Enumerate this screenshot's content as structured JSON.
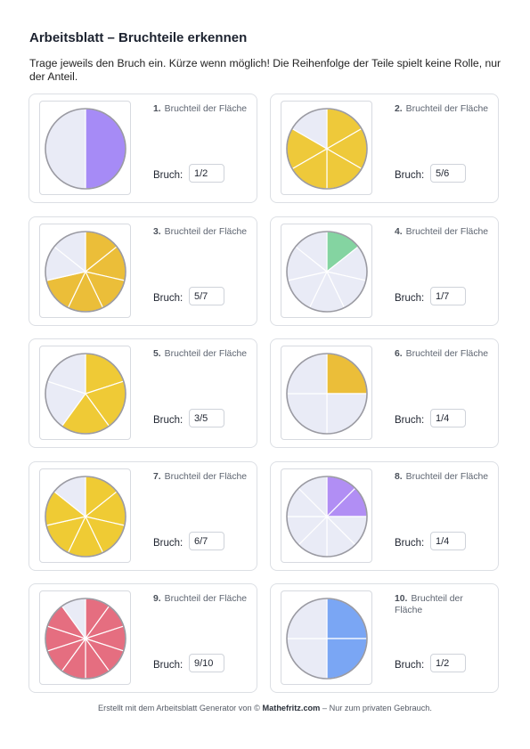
{
  "worksheet": {
    "title": "Arbeitsblatt – Bruchteile erkennen",
    "instructions": "Trage jeweils den Bruch ein. Kürze wenn möglich! Die Reihenfolge der Teile spielt keine Rolle, nur der Anteil.",
    "question_text": "Bruchteil der Fläche",
    "answer_label": "Bruch:",
    "footer_prefix": "Erstellt mit dem Arbeitsblatt Generator von ©",
    "footer_brand": "Mathefritz.com",
    "footer_suffix": "– Nur zum privaten Gebrauch."
  },
  "colors": {
    "empty_fill": "#e9ebf6",
    "outline": "#9a9aa2",
    "divider": "#ffffff"
  },
  "tasks": [
    {
      "number": "1.",
      "answer": "1/2",
      "slices": 2,
      "filled": 1,
      "filled_start": 0,
      "color": "#a68bf6"
    },
    {
      "number": "2.",
      "answer": "5/6",
      "slices": 6,
      "filled": 5,
      "filled_start": 0,
      "color": "#eec93a"
    },
    {
      "number": "3.",
      "answer": "5/7",
      "slices": 7,
      "filled": 5,
      "filled_start": 0,
      "color": "#ebbe39"
    },
    {
      "number": "4.",
      "answer": "1/7",
      "slices": 7,
      "filled": 1,
      "filled_start": 0,
      "color": "#84d4a1"
    },
    {
      "number": "5.",
      "answer": "3/5",
      "slices": 5,
      "filled": 3,
      "filled_start": 0,
      "color": "#efca36"
    },
    {
      "number": "6.",
      "answer": "1/4",
      "slices": 4,
      "filled": 1,
      "filled_start": 0,
      "color": "#ebbe39"
    },
    {
      "number": "7.",
      "answer": "6/7",
      "slices": 7,
      "filled": 6,
      "filled_start": 0,
      "color": "#efcb34"
    },
    {
      "number": "8.",
      "answer": "1/4",
      "slices": 8,
      "filled": 2,
      "filled_start": 0,
      "color": "#b18ef4"
    },
    {
      "number": "9.",
      "answer": "9/10",
      "slices": 10,
      "filled": 9,
      "filled_start": 0,
      "color": "#e56e80"
    },
    {
      "number": "10.",
      "answer": "1/2",
      "slices": 4,
      "filled": 2,
      "filled_start": 0,
      "color": "#7aa6f4"
    }
  ]
}
